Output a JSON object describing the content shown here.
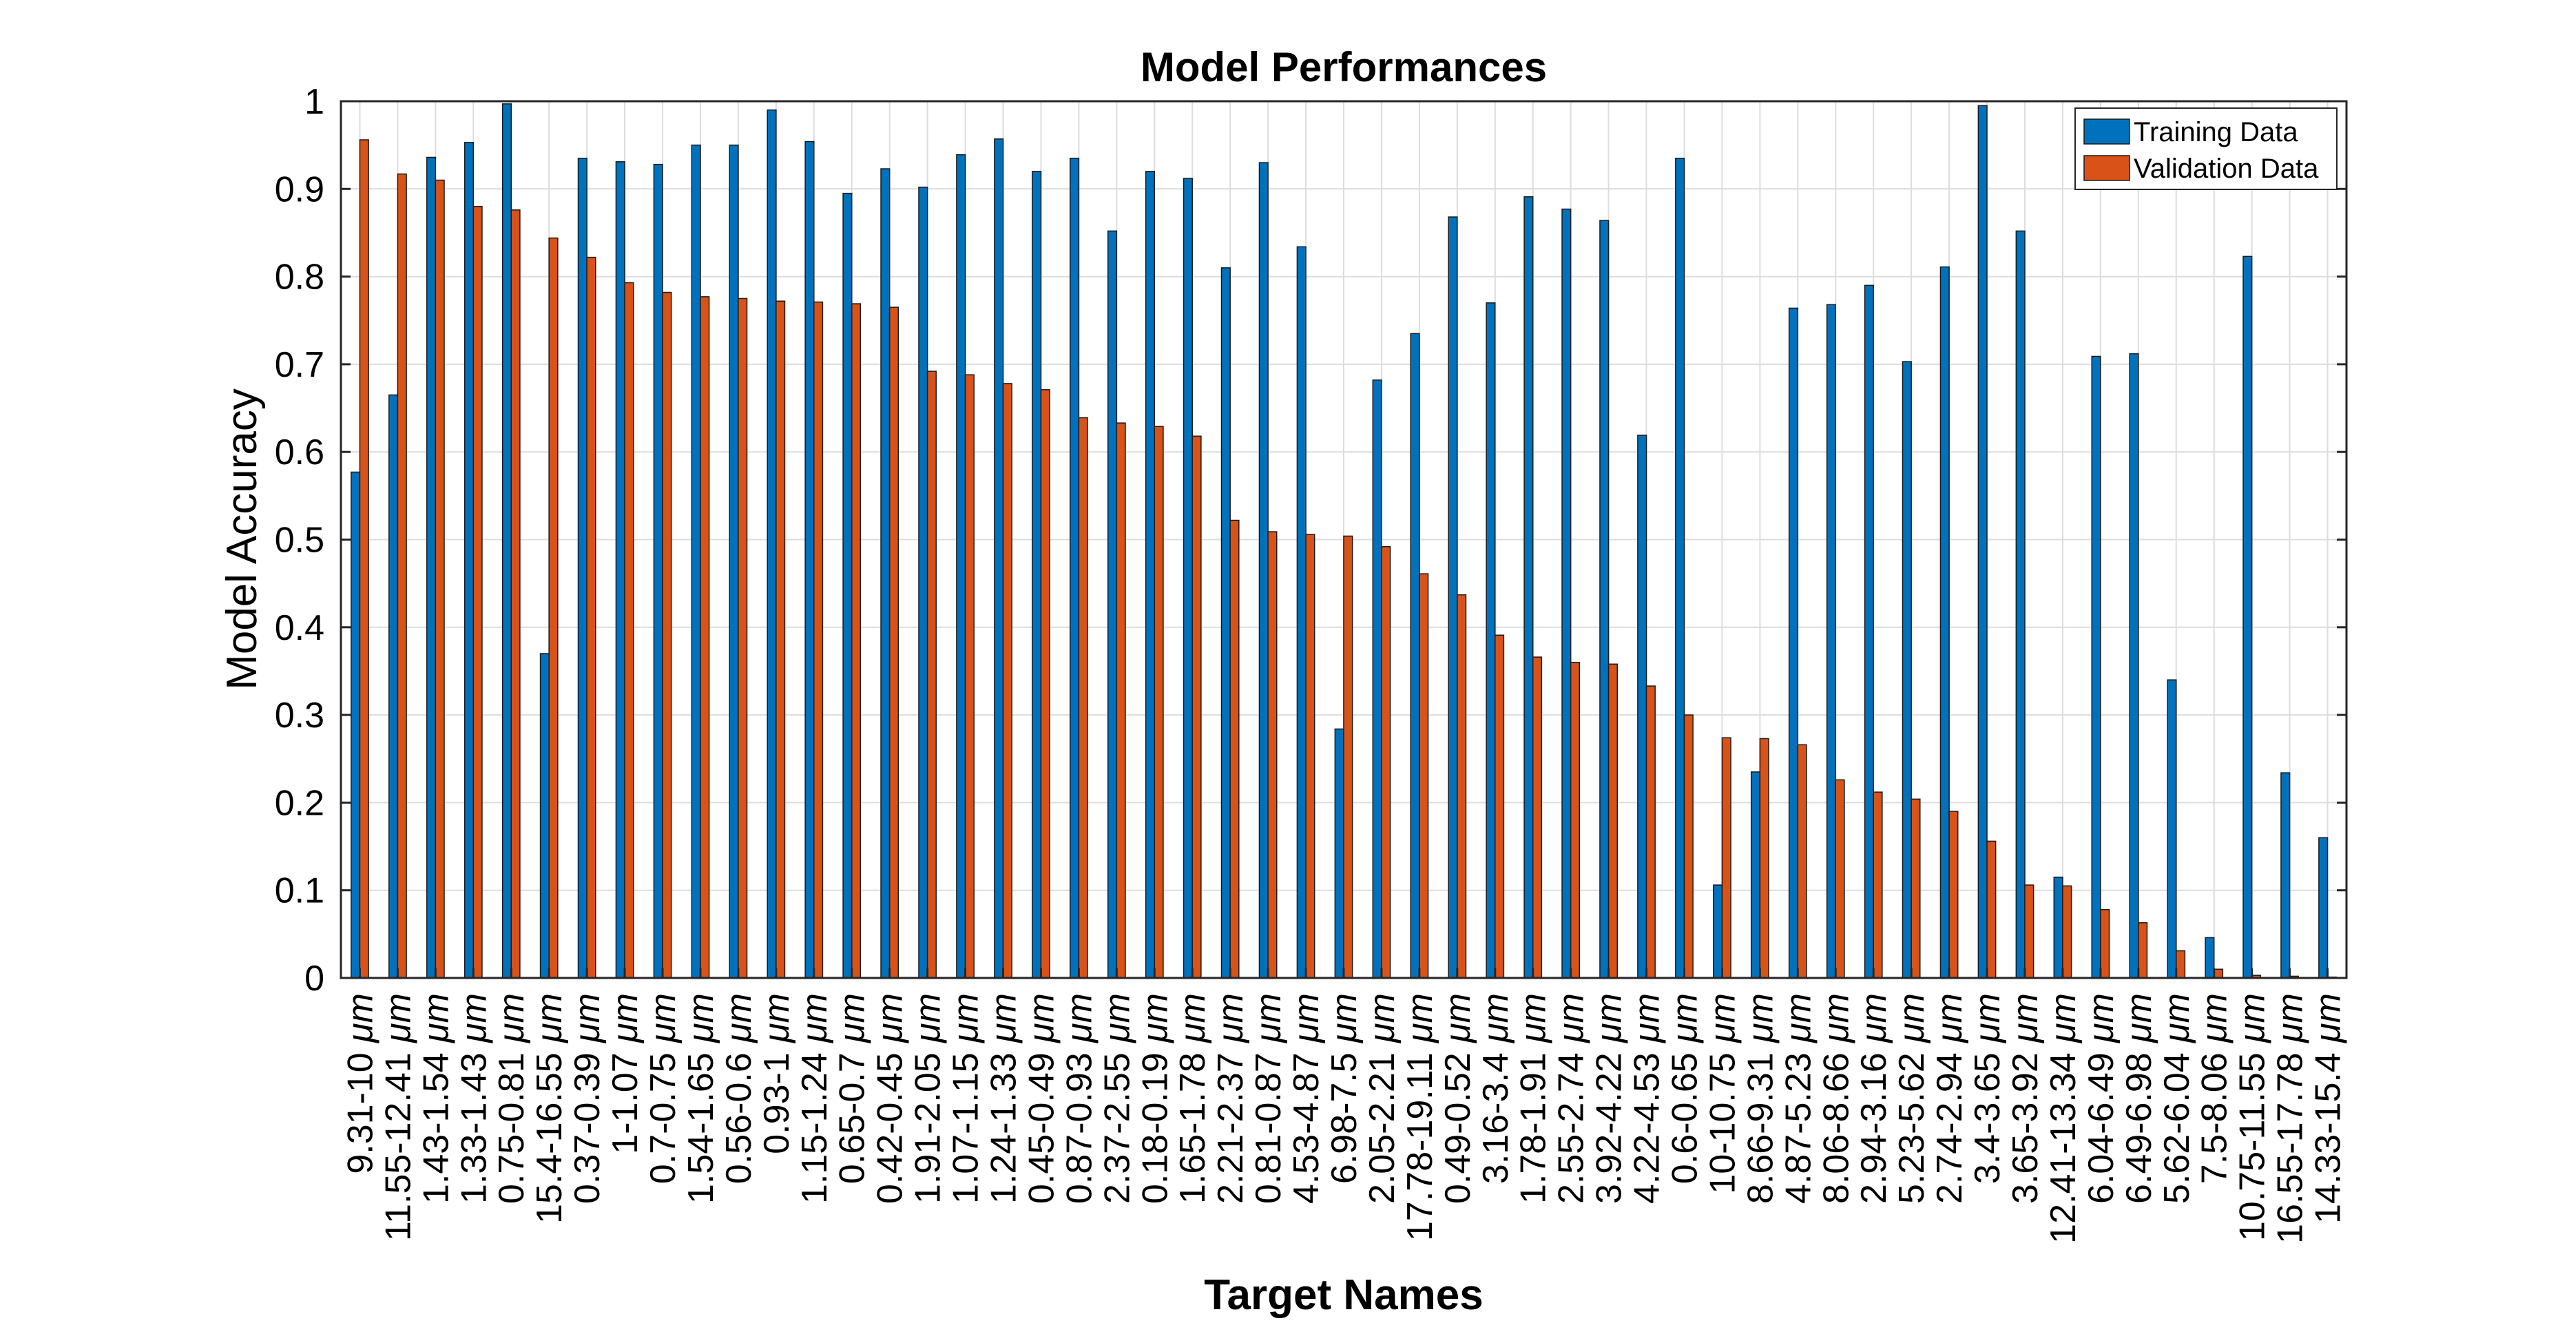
{
  "chart_data": {
    "type": "bar",
    "title": "Model Performances",
    "xlabel": "Target Names",
    "ylabel": "Model Accuracy",
    "ylim": [
      0,
      1
    ],
    "yticks": [
      0,
      0.1,
      0.2,
      0.3,
      0.4,
      0.5,
      0.6,
      0.7,
      0.8,
      0.9,
      1
    ],
    "ytick_labels": [
      "0",
      "0.1",
      "0.2",
      "0.3",
      "0.4",
      "0.5",
      "0.6",
      "0.7",
      "0.8",
      "0.9",
      "1"
    ],
    "grid": true,
    "legend_position": "top-right",
    "unit_suffix": "μm",
    "categories": [
      "9.31-10",
      "11.55-12.41",
      "1.43-1.54",
      "1.33-1.43",
      "0.75-0.81",
      "15.4-16.55",
      "0.37-0.39",
      "1-1.07",
      "0.7-0.75",
      "1.54-1.65",
      "0.56-0.6",
      "0.93-1",
      "1.15-1.24",
      "0.65-0.7",
      "0.42-0.45",
      "1.91-2.05",
      "1.07-1.15",
      "1.24-1.33",
      "0.45-0.49",
      "0.87-0.93",
      "2.37-2.55",
      "0.18-0.19",
      "1.65-1.78",
      "2.21-2.37",
      "0.81-0.87",
      "4.53-4.87",
      "6.98-7.5",
      "2.05-2.21",
      "17.78-19.11",
      "0.49-0.52",
      "3.16-3.4",
      "1.78-1.91",
      "2.55-2.74",
      "3.92-4.22",
      "4.22-4.53",
      "0.6-0.65",
      "10-10.75",
      "8.66-9.31",
      "4.87-5.23",
      "8.06-8.66",
      "2.94-3.16",
      "5.23-5.62",
      "2.74-2.94",
      "3.4-3.65",
      "3.65-3.92",
      "12.41-13.34",
      "6.04-6.49",
      "6.49-6.98",
      "5.62-6.04",
      "7.5-8.06",
      "10.75-11.55",
      "16.55-17.78",
      "14.33-15.4"
    ],
    "series": [
      {
        "name": "Training Data",
        "color": "#0072BD",
        "values": [
          0.577,
          0.665,
          0.936,
          0.953,
          0.997,
          0.37,
          0.935,
          0.931,
          0.928,
          0.95,
          0.95,
          0.99,
          0.954,
          0.895,
          0.923,
          0.902,
          0.939,
          0.957,
          0.92,
          0.935,
          0.852,
          0.92,
          0.912,
          0.81,
          0.93,
          0.834,
          0.284,
          0.682,
          0.735,
          0.868,
          0.77,
          0.891,
          0.877,
          0.864,
          0.619,
          0.935,
          0.106,
          0.235,
          0.764,
          0.768,
          0.79,
          0.703,
          0.811,
          0.995,
          0.852,
          0.115,
          0.709,
          0.712,
          0.34,
          0.046,
          0.823,
          0.234,
          0.16
        ]
      },
      {
        "name": "Validation Data",
        "color": "#D95319",
        "values": [
          0.956,
          0.917,
          0.91,
          0.88,
          0.876,
          0.844,
          0.822,
          0.793,
          0.782,
          0.777,
          0.775,
          0.772,
          0.771,
          0.769,
          0.765,
          0.692,
          0.688,
          0.678,
          0.671,
          0.639,
          0.633,
          0.629,
          0.618,
          0.522,
          0.509,
          0.506,
          0.504,
          0.492,
          0.461,
          0.437,
          0.391,
          0.366,
          0.36,
          0.358,
          0.333,
          0.3,
          0.274,
          0.273,
          0.266,
          0.226,
          0.212,
          0.204,
          0.19,
          0.156,
          0.106,
          0.105,
          0.078,
          0.063,
          0.031,
          0.01,
          0.003,
          0.002,
          0.001
        ]
      }
    ]
  }
}
